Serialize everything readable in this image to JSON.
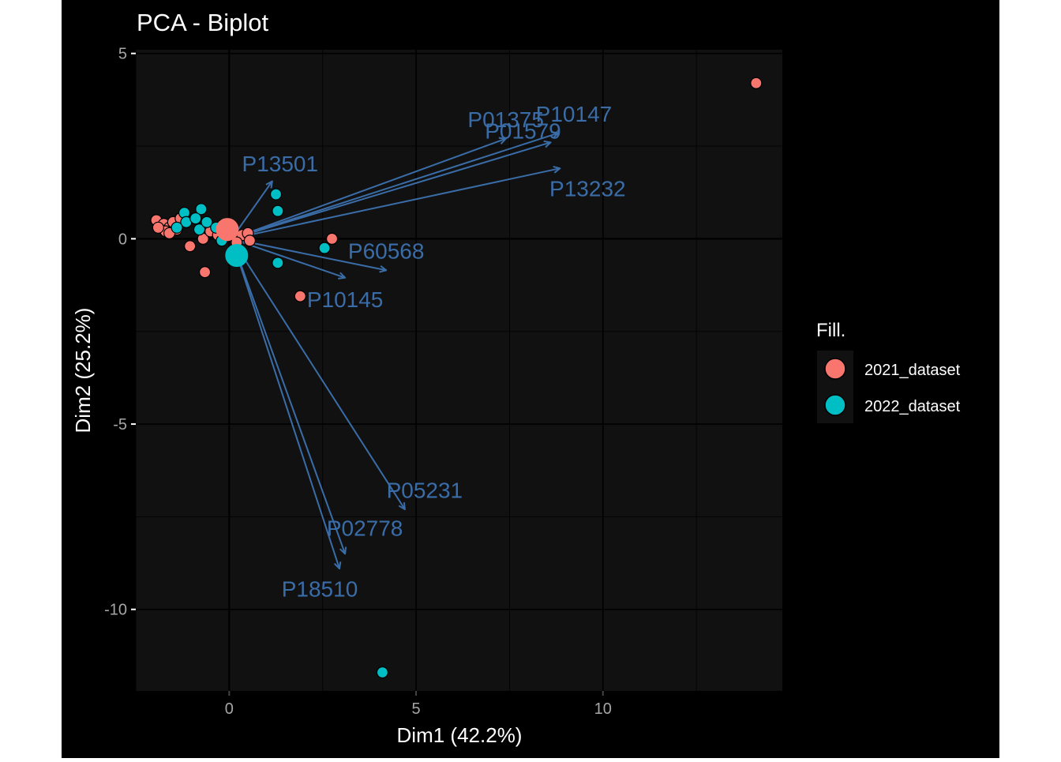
{
  "chart_data": {
    "type": "scatter",
    "title": "PCA - Biplot",
    "xlabel": "Dim1 (42.2%)",
    "ylabel": "Dim2 (25.2%)",
    "xlim": [
      -2.5,
      14.8
    ],
    "ylim": [
      -12.2,
      5.1
    ],
    "xticks": [
      0,
      5,
      10
    ],
    "xtick_labels": [
      "0",
      "5",
      "10"
    ],
    "yticks": [
      5,
      0,
      -5,
      -10
    ],
    "ytick_labels": [
      "5",
      "0",
      "-5",
      "-10"
    ],
    "grid": true,
    "legend": {
      "title": "Fill.",
      "position": "right",
      "entries": [
        {
          "label": "2021_dataset",
          "color": "#F8766D"
        },
        {
          "label": "2022_dataset",
          "color": "#00BFC4"
        }
      ]
    },
    "series": [
      {
        "name": "2021_dataset",
        "color": "#F8766D",
        "points": [
          [
            14.1,
            4.2
          ],
          [
            2.75,
            0.0
          ],
          [
            1.9,
            -1.55
          ],
          [
            -0.65,
            -0.9
          ],
          [
            -1.95,
            0.5
          ],
          [
            -1.75,
            0.4
          ],
          [
            -1.6,
            0.3
          ],
          [
            -1.7,
            0.2
          ],
          [
            -1.5,
            0.45
          ],
          [
            -1.4,
            0.25
          ],
          [
            -1.9,
            0.3
          ],
          [
            -1.6,
            0.15
          ],
          [
            -1.05,
            -0.2
          ],
          [
            -0.7,
            0.0
          ],
          [
            -0.5,
            0.2
          ],
          [
            -0.3,
            0.1
          ],
          [
            -0.1,
            0.05
          ],
          [
            -0.2,
            0.35
          ],
          [
            0.35,
            0.1
          ],
          [
            0.5,
            0.15
          ],
          [
            0.55,
            -0.05
          ],
          [
            0.2,
            -0.1
          ],
          [
            -1.3,
            0.55
          ]
        ],
        "centroid": [
          -0.05,
          0.25
        ]
      },
      {
        "name": "2022_dataset",
        "color": "#00BFC4",
        "points": [
          [
            4.1,
            -11.7
          ],
          [
            1.25,
            1.2
          ],
          [
            1.3,
            0.75
          ],
          [
            1.3,
            -0.65
          ],
          [
            2.55,
            -0.25
          ],
          [
            -0.75,
            0.8
          ],
          [
            -1.2,
            0.7
          ],
          [
            -1.15,
            0.45
          ],
          [
            -0.8,
            0.25
          ],
          [
            -0.9,
            0.55
          ],
          [
            -0.6,
            0.45
          ],
          [
            -0.2,
            -0.05
          ],
          [
            -0.35,
            0.3
          ],
          [
            -1.4,
            0.3
          ]
        ],
        "centroid": [
          0.2,
          -0.45
        ]
      }
    ],
    "loadings_color": "#3A6DA8",
    "loadings": [
      {
        "label": "P01375",
        "x": 7.4,
        "y": 2.7
      },
      {
        "label": "P10147",
        "x": 8.8,
        "y": 2.85
      },
      {
        "label": "P01579",
        "x": 8.6,
        "y": 2.6
      },
      {
        "label": "P13232",
        "x": 8.85,
        "y": 1.9
      },
      {
        "label": "P13501",
        "x": 1.15,
        "y": 1.55
      },
      {
        "label": "P60568",
        "x": 4.2,
        "y": -0.85
      },
      {
        "label": "P10145",
        "x": 3.1,
        "y": -1.05
      },
      {
        "label": "P05231",
        "x": 4.7,
        "y": -7.3
      },
      {
        "label": "P02778",
        "x": 3.1,
        "y": -8.5
      },
      {
        "label": "P18510",
        "x": 2.95,
        "y": -8.9
      }
    ]
  }
}
